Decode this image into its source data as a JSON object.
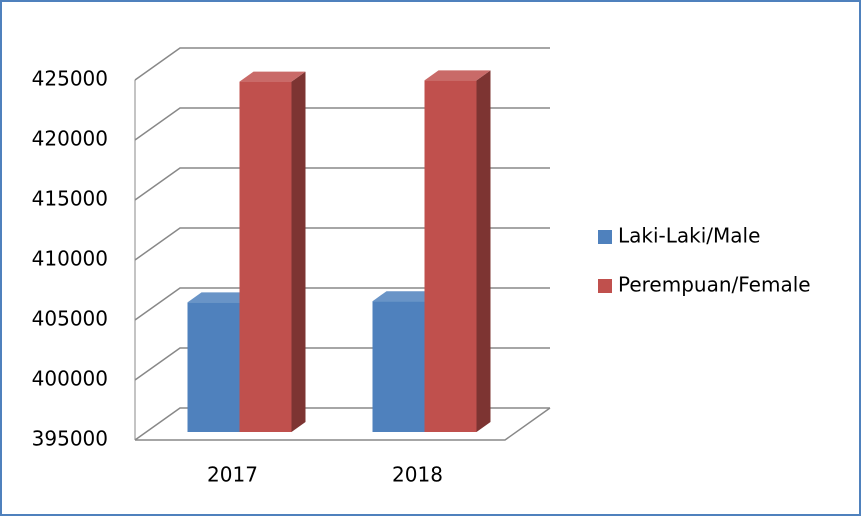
{
  "chart_data": {
    "type": "bar3d",
    "categories": [
      "2017",
      "2018"
    ],
    "series": [
      {
        "name": "Laki-Laki/Male",
        "color": "#4f81bd",
        "values": [
          405800,
          405900
        ]
      },
      {
        "name": "Perempuan/Female",
        "color": "#c0504d",
        "values": [
          424200,
          424300
        ]
      }
    ],
    "ylim": [
      395000,
      425000
    ],
    "yticks": [
      395000,
      400000,
      405000,
      410000,
      415000,
      420000,
      425000
    ],
    "grid": true,
    "legend": "right"
  }
}
